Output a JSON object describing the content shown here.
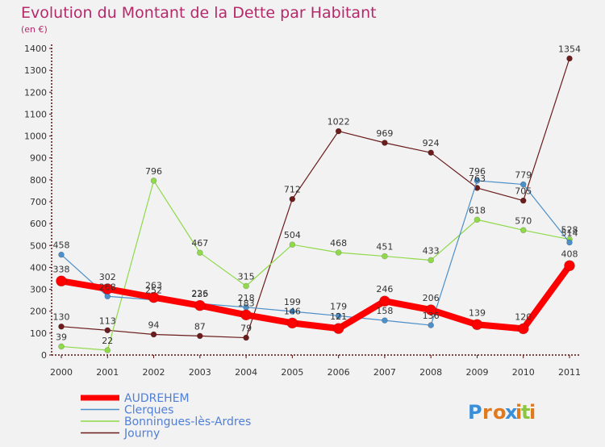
{
  "chart_data": {
    "type": "line",
    "title": "Evolution du Montant de la Dette par Habitant",
    "subtitle": "(en €)",
    "x": [
      "2000",
      "2001",
      "2002",
      "2003",
      "2004",
      "2005",
      "2006",
      "2007",
      "2008",
      "2009",
      "2010",
      "2011"
    ],
    "ylim": [
      0,
      1400
    ],
    "yticks": [
      0,
      100,
      200,
      300,
      400,
      500,
      600,
      700,
      800,
      900,
      1000,
      1100,
      1200,
      1300,
      1400
    ],
    "grid": false,
    "legend_position": "bottom-left",
    "series": [
      {
        "name": "Journy",
        "color": "#6b1c1c",
        "linewidth": 1.2,
        "marker": 3.5,
        "values": [
          130,
          113,
          94,
          87,
          79,
          712,
          1022,
          969,
          924,
          763,
          705,
          1354
        ]
      },
      {
        "name": "Bonningues-lès-Ardres",
        "color": "#8fd94a",
        "linewidth": 1.2,
        "marker": 3.5,
        "values": [
          39,
          22,
          796,
          467,
          315,
          504,
          468,
          451,
          433,
          618,
          570,
          528
        ]
      },
      {
        "name": "Clerques",
        "color": "#4d8fc9",
        "linewidth": 1.2,
        "marker": 3.5,
        "values": [
          458,
          268,
          252,
          235,
          218,
          199,
          179,
          158,
          136,
          796,
          779,
          514
        ]
      },
      {
        "name": "AUDREHEM",
        "color": "#ff0000",
        "linewidth": 8,
        "marker": 6.5,
        "values": [
          338,
          302,
          263,
          226,
          183,
          146,
          121,
          246,
          206,
          139,
          120,
          408
        ]
      }
    ],
    "legend_order": [
      "AUDREHEM",
      "Clerques",
      "Bonningues-lès-Ardres",
      "Journy"
    ]
  },
  "logo": {
    "text": "Proxiti"
  }
}
